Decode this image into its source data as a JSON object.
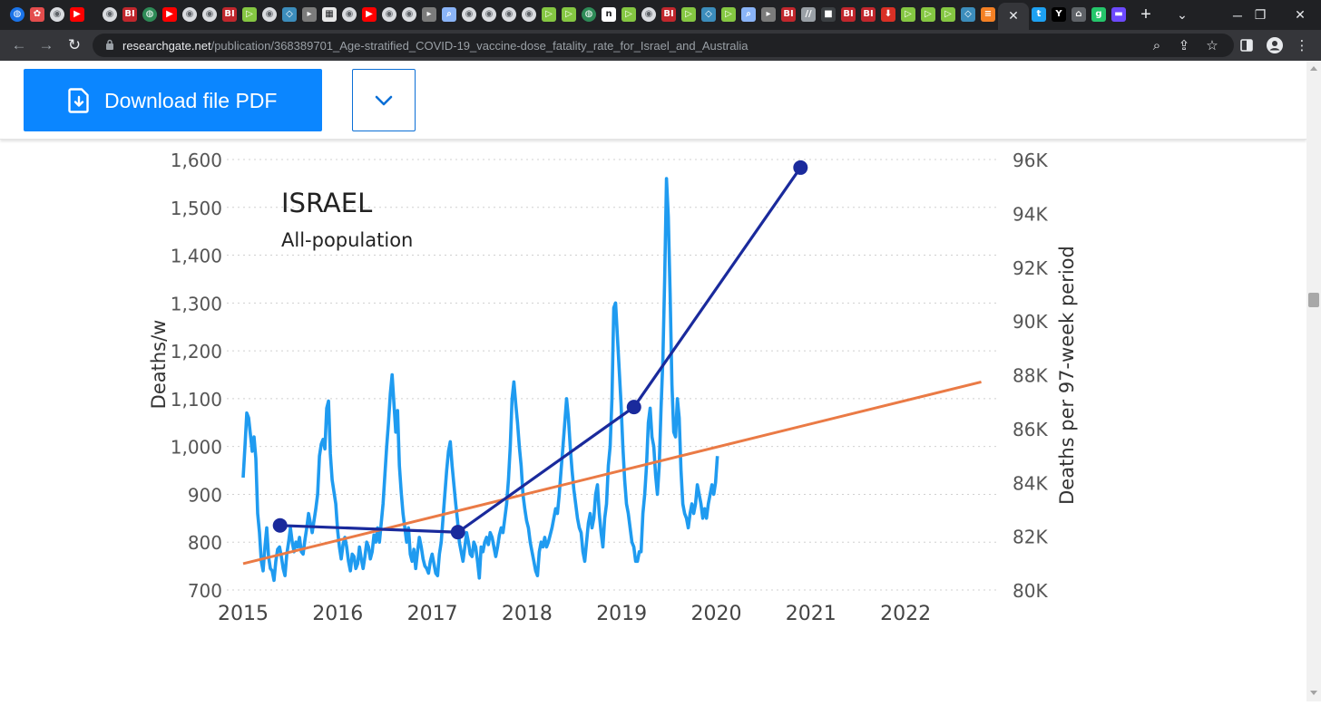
{
  "browser": {
    "tabs": [
      {
        "icon": "globe-icon",
        "color": "#1a73e8"
      },
      {
        "icon": "game-icon",
        "color": "#e44d4d"
      },
      {
        "icon": "page-icon",
        "color": "#5f6368"
      },
      {
        "icon": "youtube-icon",
        "color": "#ff0000"
      },
      {
        "icon": "separator",
        "color": ""
      },
      {
        "icon": "page-icon",
        "color": "#5f6368"
      },
      {
        "icon": "bi-icon",
        "color": "#c1272d"
      },
      {
        "icon": "globe-icon",
        "color": "#2e8b57"
      },
      {
        "icon": "youtube-icon",
        "color": "#ff0000"
      },
      {
        "icon": "page-icon",
        "color": "#5f6368"
      },
      {
        "icon": "page-icon",
        "color": "#5f6368"
      },
      {
        "icon": "bi-icon",
        "color": "#c1272d"
      },
      {
        "icon": "rumble-icon",
        "color": "#85c742"
      },
      {
        "icon": "page-icon",
        "color": "#5f6368"
      },
      {
        "icon": "shield-icon",
        "color": "#3c8dbc"
      },
      {
        "icon": "substack-icon",
        "color": "#7b7b7b"
      },
      {
        "icon": "grid-icon",
        "color": "#e8e8e8"
      },
      {
        "icon": "page-icon",
        "color": "#5f6368"
      },
      {
        "icon": "youtube-icon",
        "color": "#ff0000"
      },
      {
        "icon": "page-icon",
        "color": "#5f6368"
      },
      {
        "icon": "page-icon",
        "color": "#5f6368"
      },
      {
        "icon": "substack-icon",
        "color": "#7b7b7b"
      },
      {
        "icon": "search-icon",
        "color": "#8ab4f8"
      },
      {
        "icon": "page-icon",
        "color": "#5f6368"
      },
      {
        "icon": "page-icon",
        "color": "#5f6368"
      },
      {
        "icon": "page-icon",
        "color": "#5f6368"
      },
      {
        "icon": "page-icon",
        "color": "#5f6368"
      },
      {
        "icon": "rumble-icon",
        "color": "#85c742"
      },
      {
        "icon": "rumble-icon",
        "color": "#85c742"
      },
      {
        "icon": "globe-icon",
        "color": "#2e8b57"
      },
      {
        "icon": "notion-icon",
        "color": "#ffffff"
      },
      {
        "icon": "rumble-icon",
        "color": "#85c742"
      },
      {
        "icon": "page-icon",
        "color": "#5f6368"
      },
      {
        "icon": "bi-icon",
        "color": "#c1272d"
      },
      {
        "icon": "rumble-icon",
        "color": "#85c742"
      },
      {
        "icon": "shield-icon",
        "color": "#3c8dbc"
      },
      {
        "icon": "rumble-icon",
        "color": "#85c742"
      },
      {
        "icon": "search-icon",
        "color": "#8ab4f8"
      },
      {
        "icon": "substack-icon",
        "color": "#7b7b7b"
      },
      {
        "icon": "bi-icon",
        "color": "#c1272d"
      },
      {
        "icon": "slash-icon",
        "color": "#9aa0a6"
      },
      {
        "icon": "dark-icon",
        "color": "#3c4043"
      },
      {
        "icon": "bi-icon",
        "color": "#c1272d"
      },
      {
        "icon": "bi-icon",
        "color": "#c1272d"
      },
      {
        "icon": "pin-icon",
        "color": "#d93025"
      },
      {
        "icon": "rumble-icon",
        "color": "#85c742"
      },
      {
        "icon": "rumble-icon",
        "color": "#85c742"
      },
      {
        "icon": "rumble-icon",
        "color": "#85c742"
      },
      {
        "icon": "shield-icon",
        "color": "#3c8dbc"
      },
      {
        "icon": "stack-icon",
        "color": "#f48024"
      }
    ],
    "after_tabs": [
      {
        "icon": "twitter-icon",
        "color": "#1da1f2"
      },
      {
        "icon": "y-icon",
        "color": "#000000"
      },
      {
        "icon": "house-icon",
        "color": "#5f6368"
      },
      {
        "icon": "g-icon",
        "color": "#25c66b"
      },
      {
        "icon": "proton-icon",
        "color": "#6d4aff"
      }
    ],
    "url_host": "researchgate.net",
    "url_path": "/publication/368389701_Age-stratified_COVID-19_vaccine-dose_fatality_rate_for_Israel_and_Australia"
  },
  "page": {
    "download_label": "Download file PDF"
  },
  "chart_data": {
    "type": "line",
    "title": "ISRAEL",
    "subtitle": "All-population",
    "ylabel_left": "Deaths/w",
    "ylabel_right": "Deaths per 97-week period",
    "x_ticks": [
      "2015",
      "2016",
      "2017",
      "2018",
      "2019",
      "2020",
      "2021",
      "2022"
    ],
    "y_left_ticks": [
      "1,600",
      "1,500",
      "1,400",
      "1,300",
      "1,200",
      "1,100",
      "1,000",
      "900",
      "800",
      "700"
    ],
    "y_right_ticks": [
      "96K",
      "94K",
      "92K",
      "90K",
      "88K",
      "86K",
      "84K",
      "82K",
      "80K"
    ],
    "ylim_left": [
      700,
      1600
    ],
    "ylim_right": [
      80000,
      96000
    ],
    "xlim": [
      2015.0,
      2022.85
    ],
    "grid": true,
    "colors": {
      "weekly": "#1f9bf0",
      "period": "#1a2a9c",
      "trend": "#ea7a45"
    },
    "series": [
      {
        "axis": "left",
        "x_start": 2015.0,
        "x_step": 0.0192,
        "values": [
          935,
          1000,
          1070,
          1060,
          1025,
          990,
          1020,
          975,
          860,
          820,
          760,
          740,
          790,
          830,
          770,
          745,
          740,
          720,
          760,
          785,
          790,
          770,
          745,
          730,
          775,
          800,
          830,
          800,
          780,
          800,
          790,
          810,
          780,
          775,
          805,
          830,
          860,
          840,
          820,
          845,
          870,
          900,
          980,
          1005,
          1015,
          995,
          1080,
          1095,
          985,
          930,
          905,
          880,
          825,
          790,
          765,
          795,
          810,
          790,
          760,
          740,
          775,
          770,
          745,
          755,
          790,
          765,
          745,
          770,
          800,
          790,
          765,
          780,
          815,
          800,
          830,
          800,
          840,
          880,
          940,
          1000,
          1050,
          1110,
          1150,
          1090,
          1030,
          1075,
          960,
          905,
          860,
          830,
          800,
          830,
          775,
          760,
          785,
          745,
          780,
          810,
          790,
          765,
          750,
          745,
          735,
          760,
          775,
          755,
          735,
          730,
          775,
          800,
          850,
          900,
          950,
          990,
          1010,
          960,
          920,
          880,
          845,
          800,
          780,
          760,
          790,
          820,
          800,
          775,
          770,
          800,
          790,
          760,
          725,
          790,
          780,
          800,
          810,
          795,
          820,
          810,
          790,
          770,
          790,
          815,
          830,
          820,
          850,
          880,
          930,
          1000,
          1100,
          1135,
          1090,
          1050,
          1000,
          960,
          900,
          870,
          845,
          830,
          800,
          780,
          760,
          740,
          730,
          780,
          800,
          790,
          810,
          790,
          800,
          815,
          830,
          850,
          870,
          860,
          900,
          950,
          1000,
          1050,
          1100,
          1060,
          1000,
          950,
          910,
          880,
          850,
          830,
          820,
          780,
          760,
          800,
          840,
          860,
          830,
          850,
          900,
          920,
          860,
          820,
          790,
          850,
          880,
          960,
          1000,
          1100,
          1290,
          1300,
          1230,
          1160,
          1090,
          1000,
          930,
          880,
          860,
          830,
          800,
          790,
          760,
          760,
          780,
          780,
          860,
          900,
          960,
          1050,
          1080,
          1020,
          1000,
          940,
          900,
          960,
          1080,
          1180,
          1350,
          1560,
          1480,
          1320,
          1130,
          1030,
          1020,
          1100,
          1060,
          950,
          880,
          860,
          850,
          830,
          860,
          880,
          860,
          880,
          920,
          900,
          880,
          850,
          870,
          850,
          880,
          900,
          920,
          900,
          925,
          980
        ]
      },
      {
        "axis": "right",
        "x": [
          2015.39,
          2017.27,
          2019.13,
          2020.89
        ],
        "values": [
          82400,
          82150,
          86800,
          95700
        ]
      },
      {
        "axis": "left",
        "x": [
          2015.0,
          2022.8
        ],
        "values": [
          755,
          1135
        ]
      }
    ]
  }
}
